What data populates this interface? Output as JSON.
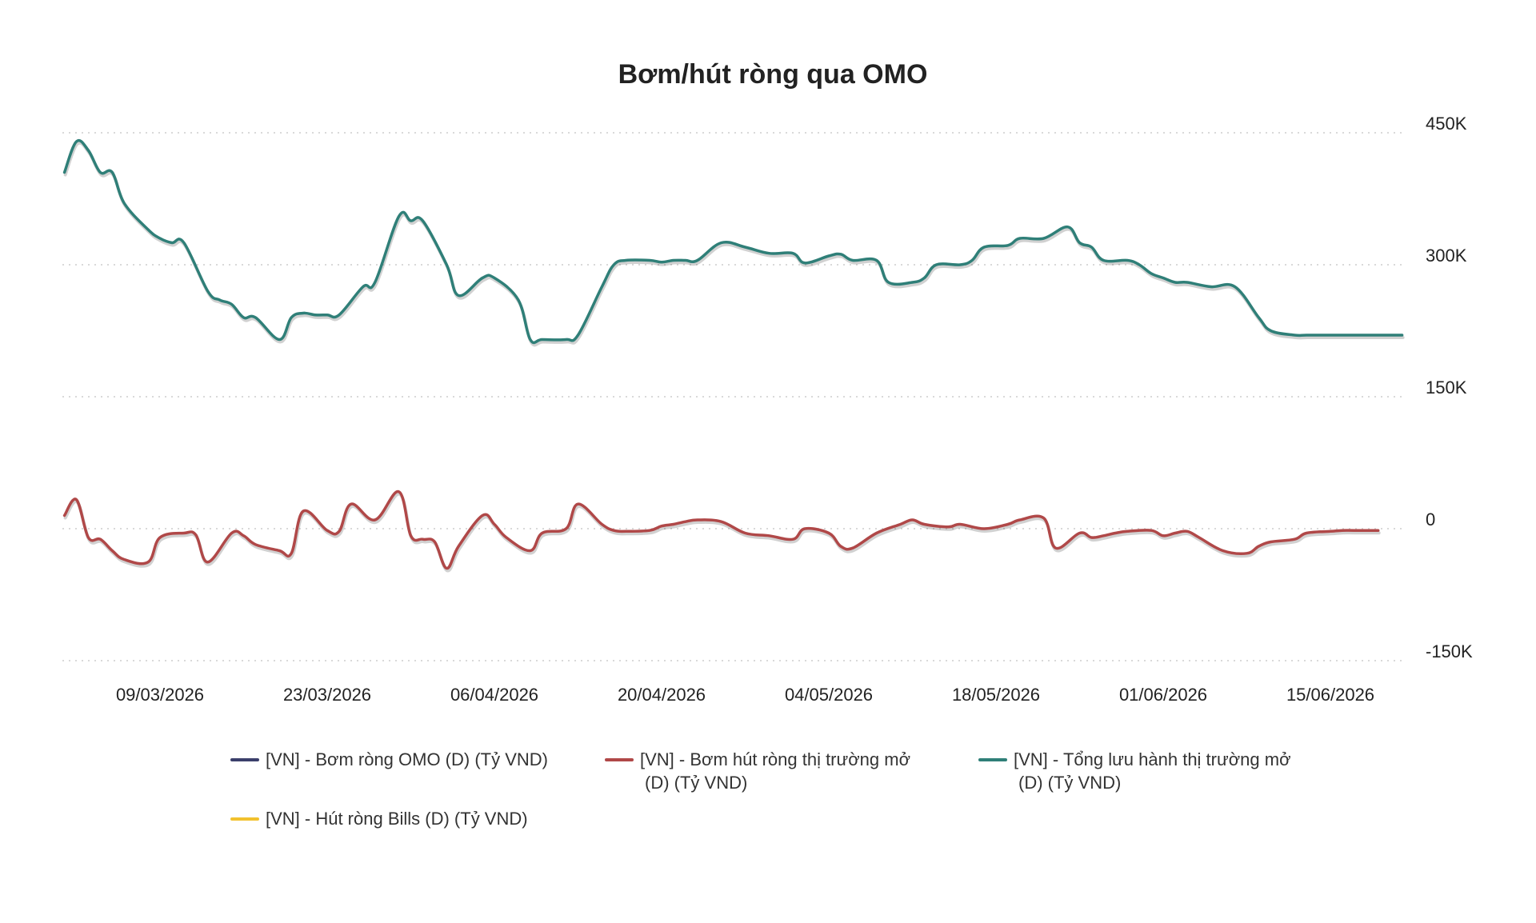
{
  "chart_data": {
    "type": "line",
    "title": "Bơm/hút ròng qua OMO",
    "x_tick_labels": [
      "09/03/2026",
      "23/03/2026",
      "06/04/2026",
      "20/04/2026",
      "04/05/2026",
      "18/05/2026",
      "01/06/2026",
      "15/06/2026"
    ],
    "y_ticks": [
      450000,
      300000,
      150000,
      0,
      -150000
    ],
    "y_tick_labels": [
      "450K",
      "300K",
      "150K",
      "0",
      "-150K"
    ],
    "ylim": [
      -150000,
      450000
    ],
    "grid": true,
    "legend_position": "bottom",
    "series": [
      {
        "name": "[VN] - Bơm ròng OMO (D) (Tỷ VND)",
        "color": "#3b3f6b",
        "x": [],
        "values": []
      },
      {
        "name": "[VN] - Bơm hút ròng thị trường mở (D) (Tỷ VND)",
        "color": "#b04848",
        "x": [
          "01/03/2026",
          "02/03/2026",
          "03/03/2026",
          "04/03/2026",
          "05/03/2026",
          "06/03/2026",
          "08/03/2026",
          "09/03/2026",
          "11/03/2026",
          "12/03/2026",
          "13/03/2026",
          "15/03/2026",
          "16/03/2026",
          "17/03/2026",
          "19/03/2026",
          "20/03/2026",
          "21/03/2026",
          "23/03/2026",
          "24/03/2026",
          "25/03/2026",
          "27/03/2026",
          "29/03/2026",
          "30/03/2026",
          "31/03/2026",
          "01/04/2026",
          "02/04/2026",
          "03/04/2026",
          "05/04/2026",
          "06/04/2026",
          "07/04/2026",
          "09/04/2026",
          "10/04/2026",
          "12/04/2026",
          "13/04/2026",
          "15/04/2026",
          "16/04/2026",
          "17/04/2026",
          "19/04/2026",
          "20/04/2026",
          "21/04/2026",
          "22/04/2026",
          "23/04/2026",
          "25/04/2026",
          "27/04/2026",
          "29/04/2026",
          "01/05/2026",
          "02/05/2026",
          "04/05/2026",
          "05/05/2026",
          "06/05/2026",
          "08/05/2026",
          "10/05/2026",
          "11/05/2026",
          "12/05/2026",
          "14/05/2026",
          "15/05/2026",
          "17/05/2026",
          "19/05/2026",
          "20/05/2026",
          "22/05/2026",
          "23/05/2026",
          "25/05/2026",
          "26/05/2026",
          "27/05/2026",
          "28/05/2026",
          "29/05/2026",
          "31/05/2026",
          "01/06/2026",
          "02/06/2026",
          "03/06/2026",
          "04/06/2026",
          "06/06/2026",
          "08/06/2026",
          "09/06/2026",
          "10/06/2026",
          "12/06/2026",
          "13/06/2026",
          "15/06/2026",
          "16/06/2026",
          "17/06/2026",
          "19/06/2026"
        ],
        "values": [
          15000,
          33000,
          -10000,
          -12000,
          -25000,
          -35000,
          -38000,
          -10000,
          -5000,
          -7000,
          -38000,
          -5000,
          -8000,
          -18000,
          -25000,
          -28000,
          20000,
          -2000,
          -3000,
          28000,
          10000,
          42000,
          -8000,
          -12000,
          -15000,
          -45000,
          -20000,
          15000,
          5000,
          -10000,
          -25000,
          -5000,
          0,
          28000,
          5000,
          -2000,
          -3000,
          -2000,
          3000,
          5000,
          8000,
          10000,
          8000,
          -5000,
          -8000,
          -12000,
          0,
          -5000,
          -20000,
          -22000,
          -5000,
          5000,
          10000,
          5000,
          2000,
          5000,
          0,
          5000,
          10000,
          12000,
          -22000,
          -5000,
          -10000,
          -8000,
          -5000,
          -3000,
          -2000,
          -8000,
          -5000,
          -3000,
          -10000,
          -25000,
          -28000,
          -20000,
          -15000,
          -12000,
          -5000,
          -3000,
          -2000,
          -2000,
          -2000
        ]
      },
      {
        "name": "[VN] - Tổng lưu hành thị trường mở (D) (Tỷ VND)",
        "color": "#2f7f78",
        "x": [
          "01/03/2026",
          "02/03/2026",
          "03/03/2026",
          "04/03/2026",
          "05/03/2026",
          "06/03/2026",
          "08/03/2026",
          "09/03/2026",
          "10/03/2026",
          "11/03/2026",
          "13/03/2026",
          "14/03/2026",
          "15/03/2026",
          "16/03/2026",
          "17/03/2026",
          "19/03/2026",
          "20/03/2026",
          "21/03/2026",
          "22/03/2026",
          "23/03/2026",
          "24/03/2026",
          "26/03/2026",
          "27/03/2026",
          "29/03/2026",
          "30/03/2026",
          "31/03/2026",
          "02/04/2026",
          "03/04/2026",
          "05/04/2026",
          "06/04/2026",
          "08/04/2026",
          "09/04/2026",
          "10/04/2026",
          "12/04/2026",
          "13/04/2026",
          "15/04/2026",
          "16/04/2026",
          "17/04/2026",
          "19/04/2026",
          "20/04/2026",
          "21/04/2026",
          "22/04/2026",
          "23/04/2026",
          "25/04/2026",
          "27/04/2026",
          "29/04/2026",
          "01/05/2026",
          "02/05/2026",
          "04/05/2026",
          "05/05/2026",
          "06/05/2026",
          "08/05/2026",
          "09/05/2026",
          "11/05/2026",
          "12/05/2026",
          "13/05/2026",
          "15/05/2026",
          "16/05/2026",
          "17/05/2026",
          "19/05/2026",
          "20/05/2026",
          "22/05/2026",
          "24/05/2026",
          "25/05/2026",
          "26/05/2026",
          "27/05/2026",
          "29/05/2026",
          "30/05/2026",
          "31/05/2026",
          "01/06/2026",
          "02/06/2026",
          "03/06/2026",
          "05/06/2026",
          "07/06/2026",
          "09/06/2026",
          "10/06/2026",
          "12/06/2026",
          "13/06/2026",
          "15/06/2026",
          "16/06/2026",
          "17/06/2026",
          "18/06/2026",
          "19/06/2026",
          "20/06/2026",
          "21/06/2026"
        ],
        "values": [
          405000,
          440000,
          430000,
          405000,
          405000,
          370000,
          340000,
          330000,
          325000,
          325000,
          270000,
          260000,
          255000,
          240000,
          240000,
          215000,
          240000,
          245000,
          243000,
          243000,
          243000,
          275000,
          280000,
          355000,
          350000,
          350000,
          300000,
          265000,
          285000,
          285000,
          260000,
          215000,
          215000,
          215000,
          220000,
          275000,
          300000,
          305000,
          305000,
          303000,
          305000,
          305000,
          305000,
          325000,
          320000,
          313000,
          313000,
          302000,
          310000,
          312000,
          305000,
          305000,
          280000,
          280000,
          285000,
          300000,
          300000,
          305000,
          320000,
          322000,
          330000,
          330000,
          343000,
          325000,
          320000,
          305000,
          305000,
          300000,
          290000,
          285000,
          280000,
          280000,
          275000,
          275000,
          240000,
          225000,
          220000,
          220000,
          220000,
          220000,
          220000,
          220000,
          220000,
          220000,
          220000
        ]
      },
      {
        "name": "[VN] - Hút ròng Bills (D) (Tỷ VND)",
        "color": "#f2c12e",
        "x": [],
        "values": []
      }
    ],
    "legend": [
      [
        "[VN] - Bơm ròng OMO (D) (Tỷ VND)"
      ],
      [
        "[VN] - Bơm hút ròng thị trường mở",
        "(D) (Tỷ VND)"
      ],
      [
        "[VN] - Tổng lưu hành thị trường mở",
        "(D) (Tỷ VND)"
      ],
      [
        "[VN] - Hút ròng Bills (D) (Tỷ VND)"
      ]
    ]
  }
}
